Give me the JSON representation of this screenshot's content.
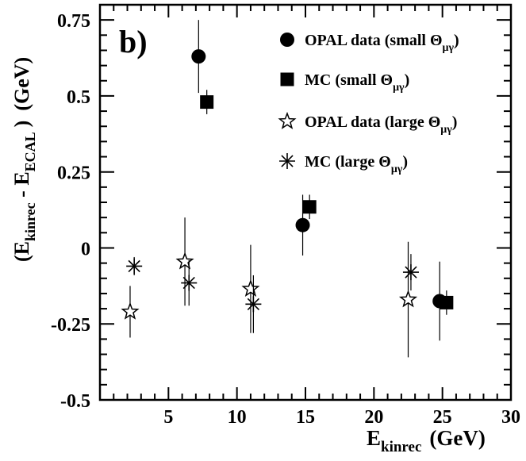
{
  "chart_data": {
    "type": "scatter",
    "panel_label": "b)",
    "xlabel": {
      "main": "E",
      "sub": "kinrec",
      "unit": "(GeV)"
    },
    "ylabel": {
      "open": "(E",
      "sub1": "kinrec",
      "mid": " - E",
      "sub2": "ECAL",
      "close": ")",
      "unit": "(GeV)"
    },
    "xlim": [
      0,
      30
    ],
    "ylim": [
      -0.5,
      0.8
    ],
    "x_ticks": [
      {
        "value": 5,
        "label": "5"
      },
      {
        "value": 10,
        "label": "10"
      },
      {
        "value": 15,
        "label": "15"
      },
      {
        "value": 20,
        "label": "20"
      },
      {
        "value": 25,
        "label": "25"
      },
      {
        "value": 30,
        "label": "30"
      }
    ],
    "y_ticks": [
      {
        "value": -0.5,
        "label": "-0.5"
      },
      {
        "value": -0.25,
        "label": "-0.25"
      },
      {
        "value": 0,
        "label": "0"
      },
      {
        "value": 0.25,
        "label": "0.25"
      },
      {
        "value": 0.5,
        "label": "0.5"
      },
      {
        "value": 0.75,
        "label": "0.75"
      }
    ],
    "legend_position": "top-right",
    "grid": false,
    "series": [
      {
        "name": "OPAL data (small Θμγ)",
        "legend_main": "OPAL data (small Θ",
        "legend_sub": "μγ",
        "legend_close": ")",
        "marker": "filled-circle",
        "points": [
          {
            "x": 7.2,
            "y": 0.63,
            "err": 0.12
          },
          {
            "x": 14.8,
            "y": 0.075,
            "err": 0.1
          },
          {
            "x": 24.8,
            "y": -0.175,
            "err": 0.13
          }
        ]
      },
      {
        "name": "MC (small Θμγ)",
        "legend_main": "MC (small Θ",
        "legend_sub": "μγ",
        "legend_close": ")",
        "marker": "filled-square",
        "points": [
          {
            "x": 7.8,
            "y": 0.48,
            "err": 0.04
          },
          {
            "x": 15.3,
            "y": 0.135,
            "err": 0.04
          },
          {
            "x": 25.3,
            "y": -0.18,
            "err": 0.04
          }
        ]
      },
      {
        "name": "OPAL data (large Θμγ)",
        "legend_main": "OPAL data (large Θ",
        "legend_sub": "μγ",
        "legend_close": ")",
        "marker": "open-star",
        "points": [
          {
            "x": 2.2,
            "y": -0.21,
            "err": 0.085
          },
          {
            "x": 6.2,
            "y": -0.045,
            "err": 0.145
          },
          {
            "x": 11.0,
            "y": -0.135,
            "err": 0.145
          },
          {
            "x": 22.5,
            "y": -0.17,
            "err": 0.19
          }
        ]
      },
      {
        "name": "MC (large Θμγ)",
        "legend_main": "MC (large Θ",
        "legend_sub": "μγ",
        "legend_close": ")",
        "marker": "asterisk",
        "points": [
          {
            "x": 2.5,
            "y": -0.06,
            "err": 0.03
          },
          {
            "x": 6.5,
            "y": -0.115,
            "err": 0.075
          },
          {
            "x": 11.2,
            "y": -0.185,
            "err": 0.095
          },
          {
            "x": 22.7,
            "y": -0.08,
            "err": 0.06
          }
        ]
      }
    ]
  }
}
